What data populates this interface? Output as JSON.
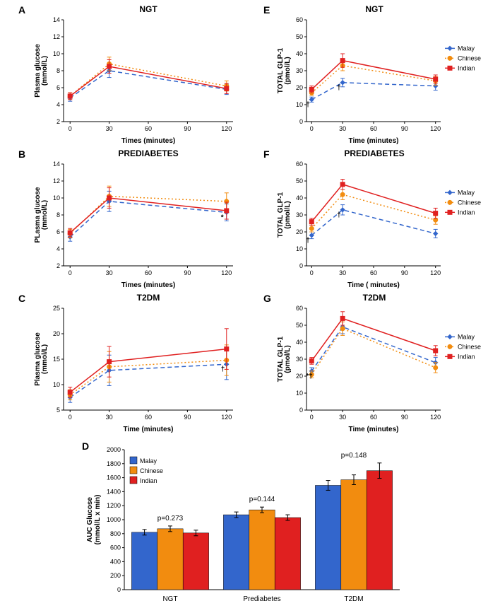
{
  "colors": {
    "malay": "#3366cc",
    "chinese": "#f28c0f",
    "indian": "#e02020",
    "axis": "#000000",
    "grid": "#e0e0e0"
  },
  "legend_labels": {
    "malay": "Malay",
    "chinese": "Chinese",
    "indian": "Indian"
  },
  "x_ticks": [
    0,
    30,
    60,
    90,
    120
  ],
  "left": {
    "y_label": "Plasma glucose\n(mmol/L)",
    "y_label_B": "PLasma glucose\n(mmol/L)",
    "x_label": "Times (minutes)",
    "x_label_C": "Time (minutes)",
    "titles": {
      "A": "NGT",
      "B": "PREDIABETES",
      "C": "T2DM"
    },
    "y_range_AB": [
      2,
      14
    ],
    "y_ticks_AB": [
      2,
      4,
      6,
      8,
      10,
      12,
      14
    ],
    "y_range_C": [
      5,
      25
    ],
    "y_ticks_C": [
      5,
      10,
      15,
      20,
      25
    ],
    "series": {
      "A": {
        "malay": [
          [
            0,
            4.8,
            0.4
          ],
          [
            30,
            8.0,
            0.8
          ],
          [
            120,
            5.8,
            0.6
          ]
        ],
        "chinese": [
          [
            0,
            5.0,
            0.4
          ],
          [
            30,
            8.8,
            0.8
          ],
          [
            120,
            6.2,
            0.6
          ]
        ],
        "indian": [
          [
            0,
            5.0,
            0.4
          ],
          [
            30,
            8.5,
            0.8
          ],
          [
            120,
            5.9,
            0.6
          ]
        ]
      },
      "B": {
        "malay": [
          [
            0,
            5.4,
            0.5
          ],
          [
            30,
            9.6,
            1.2
          ],
          [
            120,
            8.3,
            1.0
          ]
        ],
        "chinese": [
          [
            0,
            5.8,
            0.5
          ],
          [
            30,
            10.2,
            1.2
          ],
          [
            120,
            9.6,
            1.0
          ]
        ],
        "indian": [
          [
            0,
            5.9,
            0.5
          ],
          [
            30,
            10.0,
            1.2
          ],
          [
            120,
            8.5,
            1.0
          ]
        ]
      },
      "C": {
        "malay": [
          [
            0,
            7.5,
            1.0
          ],
          [
            30,
            12.8,
            3.0
          ],
          [
            120,
            14.0,
            3.0
          ]
        ],
        "chinese": [
          [
            0,
            8.0,
            1.0
          ],
          [
            30,
            13.5,
            3.0
          ],
          [
            120,
            14.8,
            3.0
          ]
        ],
        "indian": [
          [
            0,
            8.5,
            1.0
          ],
          [
            30,
            14.5,
            3.0
          ],
          [
            120,
            17.0,
            4.0
          ]
        ]
      }
    }
  },
  "right": {
    "y_label": "TOTAL GLP-1\n(pmol/L)",
    "x_label": "Time (minutes)",
    "x_label_F": "Time ( minutes)",
    "titles": {
      "E": "NGT",
      "F": "PREDIABETES",
      "G": "T2DM"
    },
    "y_range": [
      0,
      60
    ],
    "y_ticks": [
      0,
      10,
      20,
      30,
      40,
      50,
      60
    ],
    "series": {
      "E": {
        "malay": [
          [
            0,
            13,
            1.5
          ],
          [
            30,
            23,
            2.5
          ],
          [
            120,
            21,
            2.5
          ]
        ],
        "chinese": [
          [
            0,
            17,
            1.5
          ],
          [
            30,
            33,
            3.0
          ],
          [
            120,
            24,
            2.5
          ]
        ],
        "indian": [
          [
            0,
            19,
            2.0
          ],
          [
            30,
            36,
            4.0
          ],
          [
            120,
            25,
            2.5
          ]
        ]
      },
      "F": {
        "malay": [
          [
            0,
            18,
            2.0
          ],
          [
            30,
            33,
            3.0
          ],
          [
            120,
            19,
            2.5
          ]
        ],
        "chinese": [
          [
            0,
            22,
            2.0
          ],
          [
            30,
            42,
            3.0
          ],
          [
            120,
            27,
            2.5
          ]
        ],
        "indian": [
          [
            0,
            26,
            2.0
          ],
          [
            30,
            48,
            3.0
          ],
          [
            120,
            31,
            3.0
          ]
        ]
      },
      "G": {
        "malay": [
          [
            0,
            23,
            2.0
          ],
          [
            30,
            49,
            4.0
          ],
          [
            120,
            28,
            3.0
          ]
        ],
        "chinese": [
          [
            0,
            21,
            2.0
          ],
          [
            30,
            48,
            4.0
          ],
          [
            120,
            25,
            3.0
          ]
        ],
        "indian": [
          [
            0,
            29,
            2.0
          ],
          [
            30,
            54,
            4.0
          ],
          [
            120,
            35,
            3.0
          ]
        ]
      }
    },
    "markers": {
      "E": {
        "0": "†",
        "30": "†"
      },
      "F": {
        "0": "†",
        "30": "†"
      },
      "G": {
        "0": "*†"
      }
    },
    "left_markers": {
      "B": {
        "120": "*"
      },
      "C": {
        "120": "†"
      }
    }
  },
  "barD": {
    "title": null,
    "y_label": "AUC Glucose\n(mmol/L x min)",
    "y_range": [
      0,
      2000
    ],
    "y_ticks": [
      0,
      200,
      400,
      600,
      800,
      1000,
      1200,
      1400,
      1600,
      1800,
      2000
    ],
    "groups": [
      "NGT",
      "Prediabetes",
      "T2DM"
    ],
    "pvals": [
      "p=0.273",
      "p=0.144",
      "p=0.148"
    ],
    "values": {
      "NGT": {
        "malay": 820,
        "chinese": 870,
        "indian": 810
      },
      "Prediabetes": {
        "malay": 1070,
        "chinese": 1140,
        "indian": 1030
      },
      "T2DM": {
        "malay": 1490,
        "chinese": 1570,
        "indian": 1700
      }
    },
    "err": {
      "NGT": {
        "malay": 40,
        "chinese": 40,
        "indian": 40
      },
      "Prediabetes": {
        "malay": 40,
        "chinese": 40,
        "indian": 40
      },
      "T2DM": {
        "malay": 70,
        "chinese": 70,
        "indian": 110
      }
    }
  },
  "line_styles": {
    "malay": {
      "dash": "6,4",
      "marker": "diamond"
    },
    "chinese": {
      "dash": "2,3",
      "marker": "circle"
    },
    "indian": {
      "dash": "",
      "marker": "square"
    }
  },
  "layout": {
    "title_fontsize": 12,
    "label_fontsize": 10,
    "tick_fontsize": 9,
    "line_width": 1.5,
    "marker_size": 3,
    "bar_width": 0.28
  }
}
